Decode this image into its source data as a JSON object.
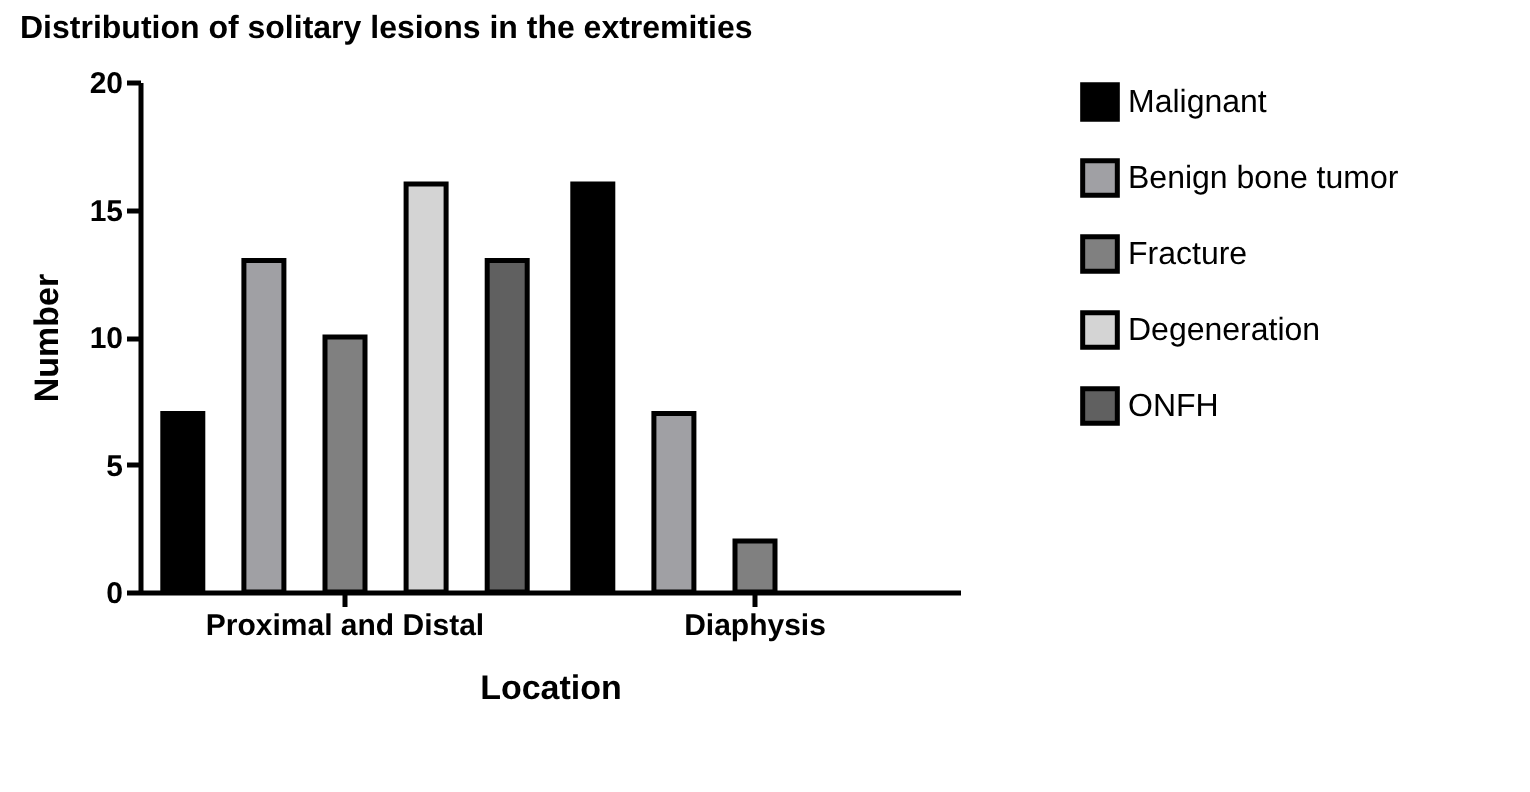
{
  "chart_data": {
    "type": "bar",
    "title": "Distribution of solitary lesions in the extremities",
    "xlabel": "Location",
    "ylabel": "Number",
    "categories": [
      "Proximal and Distal",
      "Diaphysis"
    ],
    "series": [
      {
        "name": "Malignant",
        "color": "#000000",
        "values": [
          7,
          16
        ]
      },
      {
        "name": "Benign bone tumor",
        "color": "#a0a0a4",
        "values": [
          13,
          7
        ]
      },
      {
        "name": "Fracture",
        "color": "#808080",
        "values": [
          10,
          2
        ]
      },
      {
        "name": "Degeneration",
        "color": "#d4d4d4",
        "values": [
          16,
          null
        ]
      },
      {
        "name": "ONFH",
        "color": "#606060",
        "values": [
          13,
          null
        ]
      }
    ],
    "ylim": [
      0,
      20
    ],
    "yticks": [
      0,
      5,
      10,
      15,
      20
    ],
    "grid": false,
    "legend": "right"
  }
}
